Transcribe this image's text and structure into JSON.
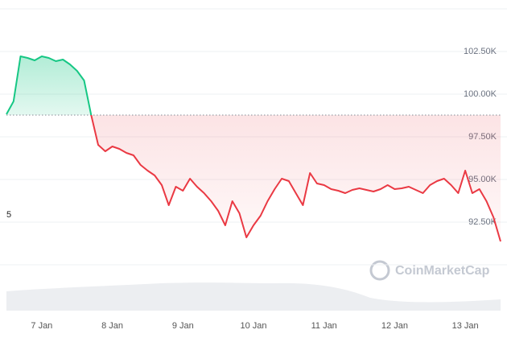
{
  "chart_data": {
    "type": "line",
    "watermark": "CoinMarketCap",
    "annotation": "5",
    "x": [
      6.5,
      6.6,
      6.7,
      6.8,
      6.9,
      7.0,
      7.1,
      7.2,
      7.3,
      7.4,
      7.5,
      7.6,
      7.7,
      7.8,
      7.9,
      8.0,
      8.1,
      8.2,
      8.3,
      8.4,
      8.5,
      8.6,
      8.7,
      8.8,
      8.9,
      9.0,
      9.1,
      9.2,
      9.3,
      9.4,
      9.5,
      9.6,
      9.7,
      9.8,
      9.9,
      10.0,
      10.1,
      10.2,
      10.3,
      10.4,
      10.5,
      10.6,
      10.7,
      10.8,
      10.9,
      11.0,
      11.1,
      11.2,
      11.3,
      11.4,
      11.5,
      11.6,
      11.7,
      11.8,
      11.9,
      12.0,
      12.1,
      12.2,
      12.3,
      12.4,
      12.5,
      12.6,
      12.7,
      12.8,
      12.9,
      13.0,
      13.1,
      13.2,
      13.3,
      13.4,
      13.5
    ],
    "values": [
      98820,
      99575,
      102217,
      102123,
      101981,
      102217,
      102123,
      101934,
      102028,
      101745,
      101368,
      100802,
      98774,
      97028,
      96651,
      96934,
      96793,
      96557,
      96415,
      95849,
      95519,
      95236,
      94670,
      93491,
      94575,
      94340,
      95047,
      94575,
      94198,
      93726,
      93160,
      92311,
      93726,
      93019,
      91604,
      92311,
      92877,
      93726,
      94434,
      95047,
      94906,
      94198,
      93491,
      95377,
      94764,
      94670,
      94434,
      94340,
      94198,
      94387,
      94481,
      94387,
      94292,
      94434,
      94670,
      94434,
      94481,
      94575,
      94387,
      94198,
      94670,
      94906,
      95047,
      94670,
      94198,
      95519,
      94198,
      94434,
      93726,
      92783,
      91368
    ],
    "baseline": 98774,
    "up_color": "#16c784",
    "down_color": "#ea3943",
    "xlim": [
      6.5,
      13.5
    ],
    "ylim": [
      90000,
      105000
    ],
    "xticks": [
      {
        "value": 7,
        "label": "7 Jan"
      },
      {
        "value": 8,
        "label": "8 Jan"
      },
      {
        "value": 9,
        "label": "9 Jan"
      },
      {
        "value": 10,
        "label": "10 Jan"
      },
      {
        "value": 11,
        "label": "11 Jan"
      },
      {
        "value": 12,
        "label": "12 Jan"
      },
      {
        "value": 13,
        "label": "13 Jan"
      }
    ],
    "yticks": [
      {
        "value": 92500,
        "label": "92.50K"
      },
      {
        "value": 95000,
        "label": "95.00K"
      },
      {
        "value": 97500,
        "label": "97.50K"
      },
      {
        "value": 100000,
        "label": "100.00K"
      },
      {
        "value": 102500,
        "label": "102.50K"
      }
    ],
    "grid": true
  }
}
